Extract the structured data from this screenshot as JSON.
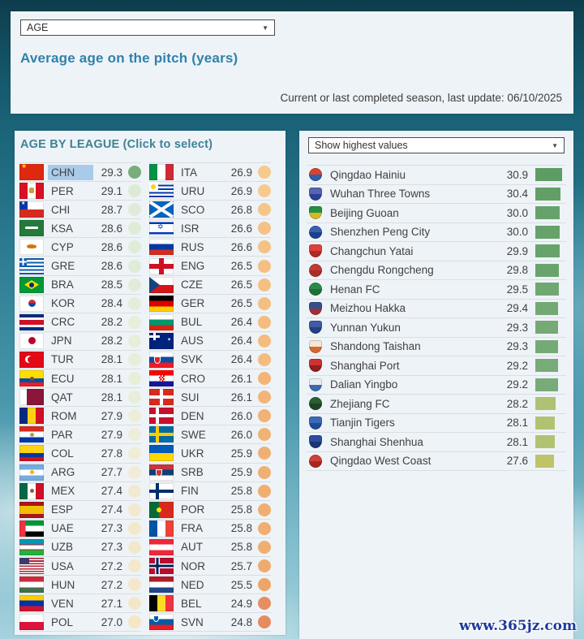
{
  "header": {
    "dropdown_value": "AGE",
    "title": "Average age on the pitch (years)",
    "note": "Current or last completed season, last update: 06/10/2025"
  },
  "league_panel": {
    "heading": "AGE BY LEAGUE (Click to select)",
    "selected_highlight_color": "#a9cbe9",
    "col1": [
      {
        "code": "CHN",
        "value": "29.3",
        "dot": "#79ad7c",
        "selected": true
      },
      {
        "code": "PER",
        "value": "29.1",
        "dot": "#dcead8"
      },
      {
        "code": "CHI",
        "value": "28.7",
        "dot": "#deebd8"
      },
      {
        "code": "KSA",
        "value": "28.6",
        "dot": "#dfecd8"
      },
      {
        "code": "CYP",
        "value": "28.6",
        "dot": "#dfecd8"
      },
      {
        "code": "GRE",
        "value": "28.6",
        "dot": "#dfecd8"
      },
      {
        "code": "BRA",
        "value": "28.5",
        "dot": "#e1ecd8"
      },
      {
        "code": "KOR",
        "value": "28.4",
        "dot": "#e3edd9"
      },
      {
        "code": "CRC",
        "value": "28.2",
        "dot": "#e7eeda"
      },
      {
        "code": "JPN",
        "value": "28.2",
        "dot": "#e7eeda"
      },
      {
        "code": "TUR",
        "value": "28.1",
        "dot": "#e9eeda"
      },
      {
        "code": "ECU",
        "value": "28.1",
        "dot": "#e9eeda"
      },
      {
        "code": "QAT",
        "value": "28.1",
        "dot": "#e9eeda"
      },
      {
        "code": "ROM",
        "value": "27.9",
        "dot": "#edeeda"
      },
      {
        "code": "PAR",
        "value": "27.9",
        "dot": "#edeeda"
      },
      {
        "code": "COL",
        "value": "27.8",
        "dot": "#efedd8"
      },
      {
        "code": "ARG",
        "value": "27.7",
        "dot": "#f0ecd5"
      },
      {
        "code": "MEX",
        "value": "27.4",
        "dot": "#f2ead0"
      },
      {
        "code": "ESP",
        "value": "27.4",
        "dot": "#f2ead0"
      },
      {
        "code": "UAE",
        "value": "27.3",
        "dot": "#f2e9cd"
      },
      {
        "code": "UZB",
        "value": "27.3",
        "dot": "#f2e9cd"
      },
      {
        "code": "USA",
        "value": "27.2",
        "dot": "#f3e8cb"
      },
      {
        "code": "HUN",
        "value": "27.2",
        "dot": "#f3e8cb"
      },
      {
        "code": "VEN",
        "value": "27.1",
        "dot": "#f3e7c9"
      },
      {
        "code": "POL",
        "value": "27.0",
        "dot": "#f4e6c7"
      }
    ],
    "col2": [
      {
        "code": "ITA",
        "value": "26.9",
        "dot": "#f6c98d"
      },
      {
        "code": "URU",
        "value": "26.9",
        "dot": "#f6c98d"
      },
      {
        "code": "SCO",
        "value": "26.8",
        "dot": "#f5c689"
      },
      {
        "code": "ISR",
        "value": "26.6",
        "dot": "#f5c185"
      },
      {
        "code": "RUS",
        "value": "26.6",
        "dot": "#f5c185"
      },
      {
        "code": "ENG",
        "value": "26.5",
        "dot": "#f4bf82"
      },
      {
        "code": "CZE",
        "value": "26.5",
        "dot": "#f4bf82"
      },
      {
        "code": "GER",
        "value": "26.5",
        "dot": "#f4bf82"
      },
      {
        "code": "BUL",
        "value": "26.4",
        "dot": "#f4bc7f"
      },
      {
        "code": "AUS",
        "value": "26.4",
        "dot": "#f4bc7f"
      },
      {
        "code": "SVK",
        "value": "26.4",
        "dot": "#f4bc7f"
      },
      {
        "code": "CRO",
        "value": "26.1",
        "dot": "#f2b478"
      },
      {
        "code": "SUI",
        "value": "26.1",
        "dot": "#f2b478"
      },
      {
        "code": "DEN",
        "value": "26.0",
        "dot": "#f1b275"
      },
      {
        "code": "SWE",
        "value": "26.0",
        "dot": "#f1b275"
      },
      {
        "code": "UKR",
        "value": "25.9",
        "dot": "#f1b073"
      },
      {
        "code": "SRB",
        "value": "25.9",
        "dot": "#f1b073"
      },
      {
        "code": "FIN",
        "value": "25.8",
        "dot": "#f0ae71"
      },
      {
        "code": "POR",
        "value": "25.8",
        "dot": "#f0ae71"
      },
      {
        "code": "FRA",
        "value": "25.8",
        "dot": "#f0ae71"
      },
      {
        "code": "AUT",
        "value": "25.8",
        "dot": "#f0ae71"
      },
      {
        "code": "NOR",
        "value": "25.7",
        "dot": "#efab6f"
      },
      {
        "code": "NED",
        "value": "25.5",
        "dot": "#eda569"
      },
      {
        "code": "BEL",
        "value": "24.9",
        "dot": "#e78d62"
      },
      {
        "code": "SVN",
        "value": "24.8",
        "dot": "#e68b60"
      }
    ]
  },
  "teams_panel": {
    "dropdown_value": "Show highest values",
    "rows": [
      {
        "name": "Qingdao Hainiu",
        "value": "30.9",
        "bar": "#5d9d64",
        "logo": {
          "shape": "circle",
          "c1": "#d8432f",
          "c2": "#2f5fa8"
        }
      },
      {
        "name": "Wuhan Three Towns",
        "value": "30.4",
        "bar": "#619f66",
        "logo": {
          "shape": "shield",
          "c1": "#5a63b0",
          "c2": "#2b3f96"
        }
      },
      {
        "name": "Beijing Guoan",
        "value": "30.0",
        "bar": "#66a26a",
        "logo": {
          "shape": "shield",
          "c1": "#23903f",
          "c2": "#d9b724"
        }
      },
      {
        "name": "Shenzhen Peng City",
        "value": "30.0",
        "bar": "#66a26a",
        "logo": {
          "shape": "circle",
          "c1": "#3a5fb0",
          "c2": "#1d3f8c"
        }
      },
      {
        "name": "Changchun Yatai",
        "value": "29.9",
        "bar": "#68a36c",
        "logo": {
          "shape": "shield",
          "c1": "#e04038",
          "c2": "#b02a24"
        }
      },
      {
        "name": "Chengdu Rongcheng",
        "value": "29.8",
        "bar": "#6aa46d",
        "logo": {
          "shape": "circle",
          "c1": "#c23a34",
          "c2": "#a82e28"
        }
      },
      {
        "name": "Henan FC",
        "value": "29.5",
        "bar": "#70a872",
        "logo": {
          "shape": "circle",
          "c1": "#2a8a4a",
          "c2": "#1d6f3a"
        }
      },
      {
        "name": "Meizhou Hakka",
        "value": "29.4",
        "bar": "#73a974",
        "logo": {
          "shape": "shield",
          "c1": "#35508f",
          "c2": "#9e3038"
        }
      },
      {
        "name": "Yunnan Yukun",
        "value": "29.3",
        "bar": "#75aa76",
        "logo": {
          "shape": "shield",
          "c1": "#3e5ba9",
          "c2": "#24407e"
        }
      },
      {
        "name": "Shandong Taishan",
        "value": "29.3",
        "bar": "#75aa76",
        "logo": {
          "shape": "shield",
          "c1": "#f2e8d8",
          "c2": "#d96830"
        }
      },
      {
        "name": "Shanghai Port",
        "value": "29.2",
        "bar": "#77ab78",
        "logo": {
          "shape": "shield",
          "c1": "#cf3330",
          "c2": "#8f1f1d"
        }
      },
      {
        "name": "Dalian Yingbo",
        "value": "29.2",
        "bar": "#77ab78",
        "logo": {
          "shape": "shield",
          "c1": "#e8edf4",
          "c2": "#3a6ab0"
        }
      },
      {
        "name": "Zhejiang FC",
        "value": "28.2",
        "bar": "#aec273",
        "logo": {
          "shape": "circle",
          "c1": "#2c5e35",
          "c2": "#1c4426"
        }
      },
      {
        "name": "Tianjin Tigers",
        "value": "28.1",
        "bar": "#b1c372",
        "logo": {
          "shape": "shield",
          "c1": "#3a6ab8",
          "c2": "#1f4a94"
        }
      },
      {
        "name": "Shanghai Shenhua",
        "value": "28.1",
        "bar": "#b1c372",
        "logo": {
          "shape": "shield",
          "c1": "#2e4da0",
          "c2": "#1a3578"
        }
      },
      {
        "name": "Qingdao West Coast",
        "value": "27.6",
        "bar": "#bfc369",
        "logo": {
          "shape": "circle",
          "c1": "#d04038",
          "c2": "#a82820"
        }
      }
    ]
  },
  "watermark": "www.365jz.com"
}
